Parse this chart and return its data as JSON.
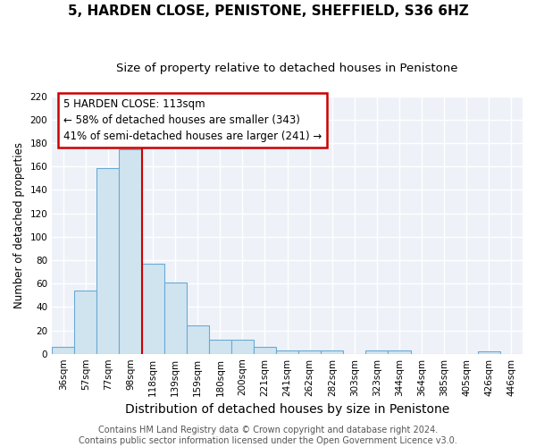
{
  "title": "5, HARDEN CLOSE, PENISTONE, SHEFFIELD, S36 6HZ",
  "subtitle": "Size of property relative to detached houses in Penistone",
  "xlabel": "Distribution of detached houses by size in Penistone",
  "ylabel": "Number of detached properties",
  "bar_labels": [
    "36sqm",
    "57sqm",
    "77sqm",
    "98sqm",
    "118sqm",
    "139sqm",
    "159sqm",
    "180sqm",
    "200sqm",
    "221sqm",
    "241sqm",
    "262sqm",
    "282sqm",
    "303sqm",
    "323sqm",
    "344sqm",
    "364sqm",
    "385sqm",
    "405sqm",
    "426sqm",
    "446sqm"
  ],
  "bar_values": [
    6,
    54,
    159,
    175,
    77,
    61,
    24,
    12,
    12,
    6,
    3,
    3,
    3,
    0,
    3,
    3,
    0,
    0,
    0,
    2,
    0
  ],
  "bar_color": "#d0e4f0",
  "bar_edgecolor": "#6aaad4",
  "vline_x": 3.5,
  "vline_color": "#cc0000",
  "ylim": [
    0,
    220
  ],
  "yticks": [
    0,
    20,
    40,
    60,
    80,
    100,
    120,
    140,
    160,
    180,
    200,
    220
  ],
  "annotation_line1": "5 HARDEN CLOSE: 113sqm",
  "annotation_line2": "← 58% of detached houses are smaller (343)",
  "annotation_line3": "41% of semi-detached houses are larger (241) →",
  "annotation_box_color": "#ffffff",
  "annotation_box_edgecolor": "#cc0000",
  "footer_line1": "Contains HM Land Registry data © Crown copyright and database right 2024.",
  "footer_line2": "Contains public sector information licensed under the Open Government Licence v3.0.",
  "background_color": "#eef2f8",
  "grid_color": "#ffffff",
  "title_fontsize": 11,
  "subtitle_fontsize": 9.5,
  "xlabel_fontsize": 10,
  "ylabel_fontsize": 8.5,
  "tick_fontsize": 7.5,
  "annotation_fontsize": 8.5,
  "footer_fontsize": 7
}
